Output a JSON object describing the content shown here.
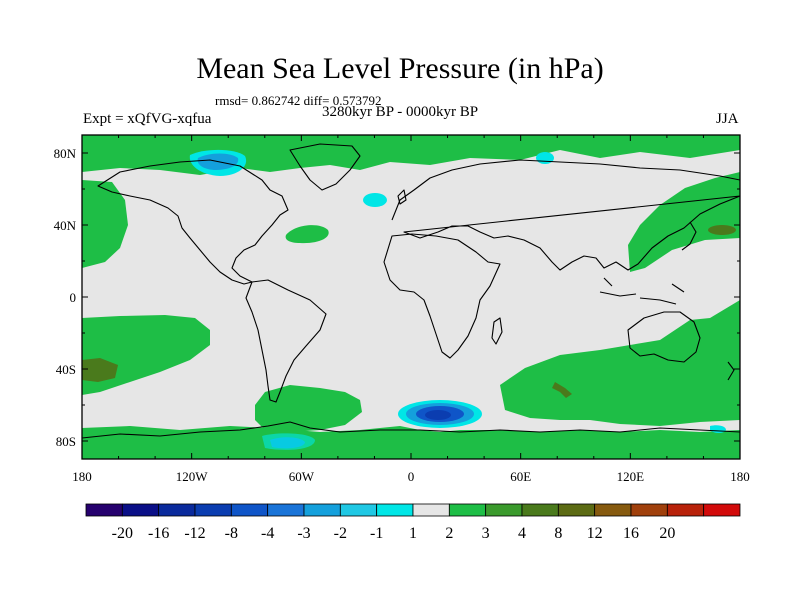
{
  "title": "Mean Sea Level Pressure (in hPa)",
  "stats": "rmsd= 0.862742 diff= 0.573792",
  "period": "3280kyr BP - 0000kyr BP",
  "experiment": "Expt = xQfVG-xqfua",
  "season": "JJA",
  "lat_ticks": [
    {
      "value": 80,
      "label": "80N"
    },
    {
      "value": 40,
      "label": "40N"
    },
    {
      "value": 0,
      "label": "0"
    },
    {
      "value": -40,
      "label": "40S"
    },
    {
      "value": -80,
      "label": "80S"
    }
  ],
  "lon_ticks": [
    {
      "value": -180,
      "label": "180"
    },
    {
      "value": -120,
      "label": "120W"
    },
    {
      "value": -60,
      "label": "60W"
    },
    {
      "value": 0,
      "label": "0"
    },
    {
      "value": 60,
      "label": "60E"
    },
    {
      "value": 120,
      "label": "120E"
    },
    {
      "value": 180,
      "label": "180"
    }
  ],
  "colorbar": {
    "colors": [
      "#26006e",
      "#0a0f87",
      "#0a2a9c",
      "#0b3db0",
      "#0f55c8",
      "#1a74d8",
      "#14a0dc",
      "#20c8e4",
      "#00e6e6",
      "#e6e6e6",
      "#1ebe46",
      "#3a9a2c",
      "#4a7a1c",
      "#5c6b14",
      "#865a0f",
      "#a0400c",
      "#b8220a",
      "#d20a0a"
    ],
    "labels": [
      "-20",
      "-16",
      "-12",
      "-8",
      "-4",
      "-3",
      "-2",
      "-1",
      "1",
      "2",
      "3",
      "4",
      "8",
      "12",
      "16",
      "20"
    ]
  },
  "colors": {
    "ocean": "#e6e6e6",
    "green": "#1ebe46",
    "cyan": "#00e6e6",
    "lightblue": "#14a0dc",
    "blue": "#0f55c8",
    "brown": "#4a7a1c"
  }
}
